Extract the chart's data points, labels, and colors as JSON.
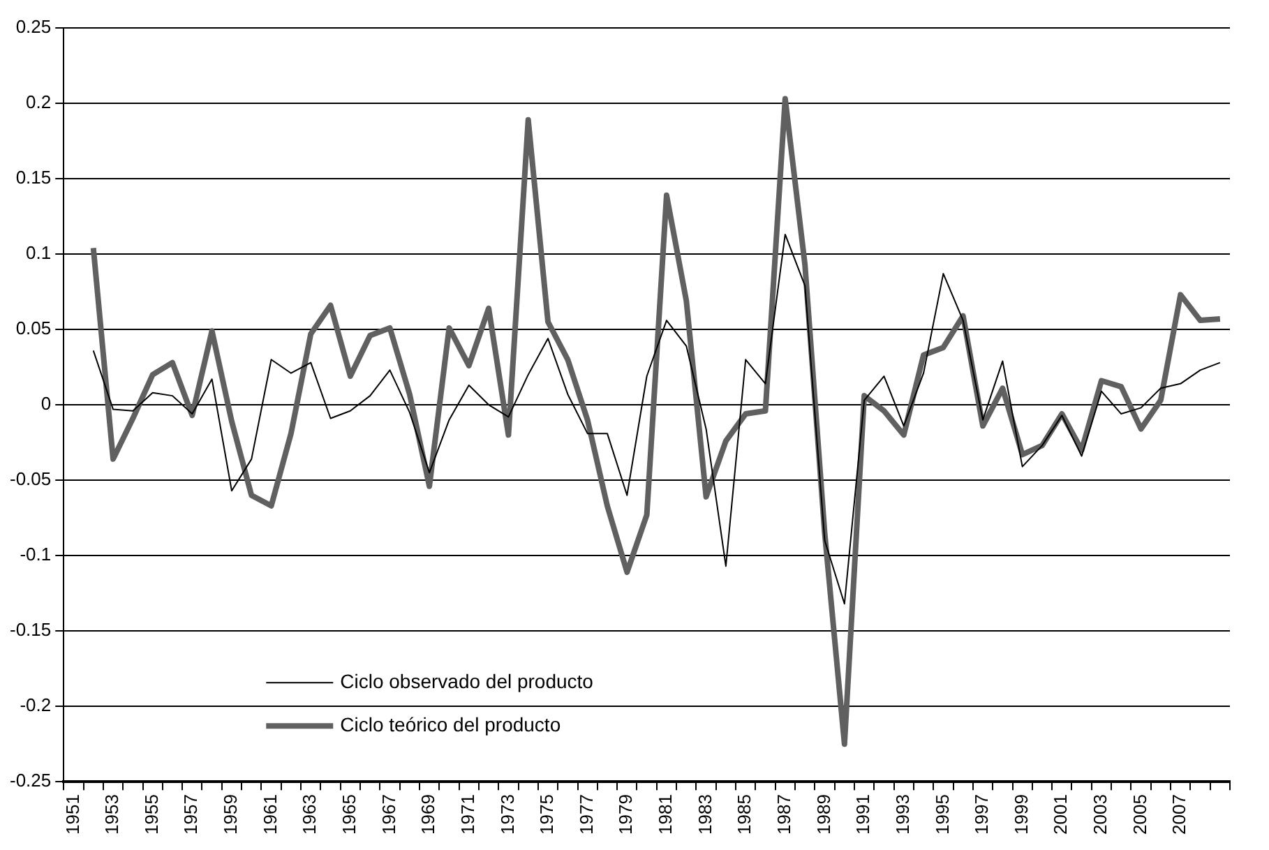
{
  "chart_data": {
    "type": "line",
    "categories": [
      "1951",
      null,
      "1953",
      null,
      "1955",
      null,
      "1957",
      null,
      "1959",
      null,
      "1961",
      null,
      "1963",
      null,
      "1965",
      null,
      "1967",
      null,
      "1969",
      null,
      "1971",
      null,
      "1973",
      null,
      "1975",
      null,
      "1977",
      null,
      "1979",
      null,
      "1981",
      null,
      "1983",
      null,
      "1985",
      null,
      "1987",
      null,
      "1989",
      null,
      "1991",
      null,
      "1993",
      null,
      "1995",
      null,
      "1997",
      null,
      "1999",
      null,
      "2001",
      null,
      "2003",
      null,
      "2005",
      null,
      "2007",
      null,
      null
    ],
    "series": [
      {
        "name": "Ciclo observado del producto",
        "color": "#000000",
        "values": [
          null,
          0.036,
          -0.003,
          -0.004,
          0.008,
          0.006,
          -0.006,
          0.017,
          -0.057,
          -0.036,
          0.03,
          0.021,
          0.028,
          -0.009,
          -0.004,
          0.006,
          0.023,
          -0.005,
          -0.045,
          -0.01,
          0.013,
          0.0,
          -0.008,
          0.02,
          0.044,
          0.007,
          -0.019,
          -0.019,
          -0.06,
          0.019,
          0.056,
          0.039,
          -0.016,
          -0.107,
          0.03,
          0.014,
          0.113,
          0.079,
          -0.09,
          -0.132,
          0.003,
          0.019,
          -0.014,
          0.021,
          0.087,
          0.056,
          -0.01,
          0.029,
          -0.041,
          -0.027,
          -0.007,
          -0.034,
          0.009,
          -0.006,
          -0.002,
          0.011,
          0.014,
          0.023,
          0.028
        ]
      },
      {
        "name": "Ciclo teórico del producto",
        "color": "#606060",
        "values": [
          null,
          0.104,
          -0.036,
          -0.009,
          0.02,
          0.028,
          -0.007,
          0.049,
          -0.011,
          -0.06,
          -0.067,
          -0.019,
          0.047,
          0.066,
          0.019,
          0.046,
          0.051,
          0.007,
          -0.054,
          0.051,
          0.026,
          0.064,
          -0.02,
          0.189,
          0.055,
          0.03,
          -0.01,
          -0.067,
          -0.111,
          -0.073,
          0.139,
          0.069,
          -0.061,
          -0.024,
          -0.006,
          -0.004,
          0.203,
          0.093,
          -0.085,
          -0.225,
          0.006,
          -0.004,
          -0.02,
          0.033,
          0.038,
          0.059,
          -0.014,
          0.011,
          -0.033,
          -0.027,
          -0.006,
          -0.03,
          0.016,
          0.012,
          -0.016,
          0.003,
          0.073,
          0.056,
          0.057
        ]
      }
    ],
    "ylim": [
      -0.25,
      0.25
    ],
    "yticks": [
      -0.25,
      -0.2,
      -0.15,
      -0.1,
      -0.05,
      0,
      0.05,
      0.1,
      0.15,
      0.2,
      0.25
    ],
    "grid": "y",
    "legend": "bottom left",
    "marker": "none",
    "line_style": "solid"
  }
}
